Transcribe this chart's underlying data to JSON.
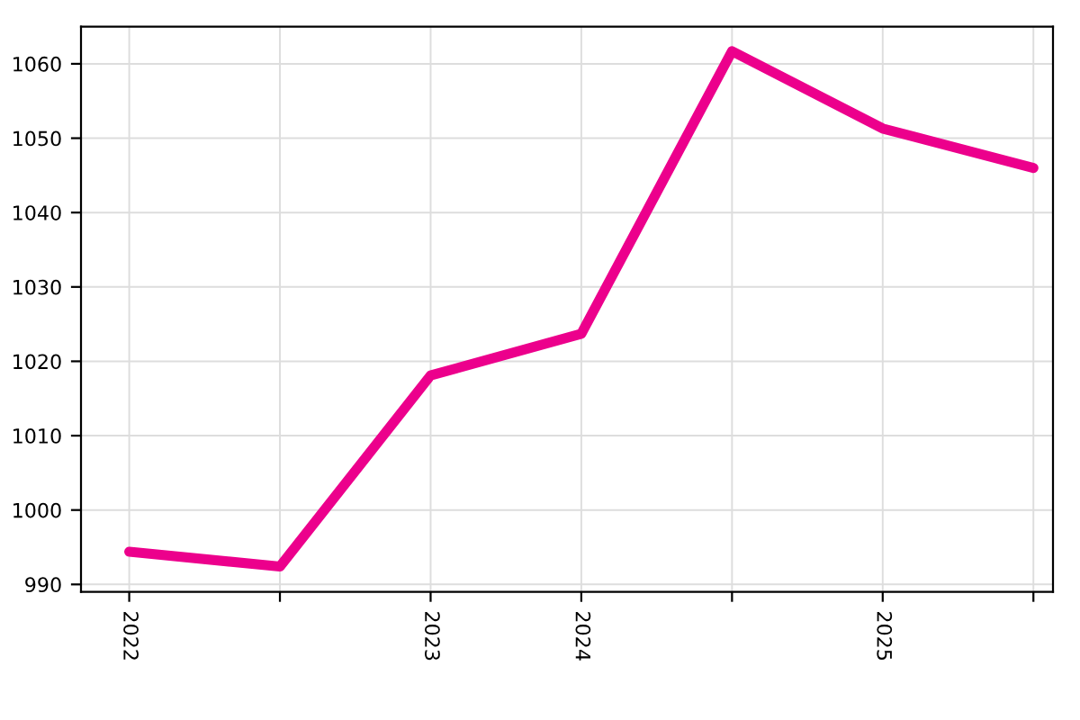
{
  "chart_data": {
    "type": "line",
    "categories": [
      "2022",
      null,
      "2023",
      "2024",
      null,
      "2025",
      null
    ],
    "series": [
      {
        "color": "#ec008c",
        "values": [
          994.4,
          992.4,
          1018.1,
          1023.7,
          1061.7,
          1051.3,
          1046.0
        ]
      }
    ],
    "ylim": [
      989,
      1065
    ],
    "yticks": [
      990,
      1000,
      1010,
      1020,
      1030,
      1040,
      1050,
      1060
    ],
    "grid": true,
    "line_style": "solid"
  }
}
